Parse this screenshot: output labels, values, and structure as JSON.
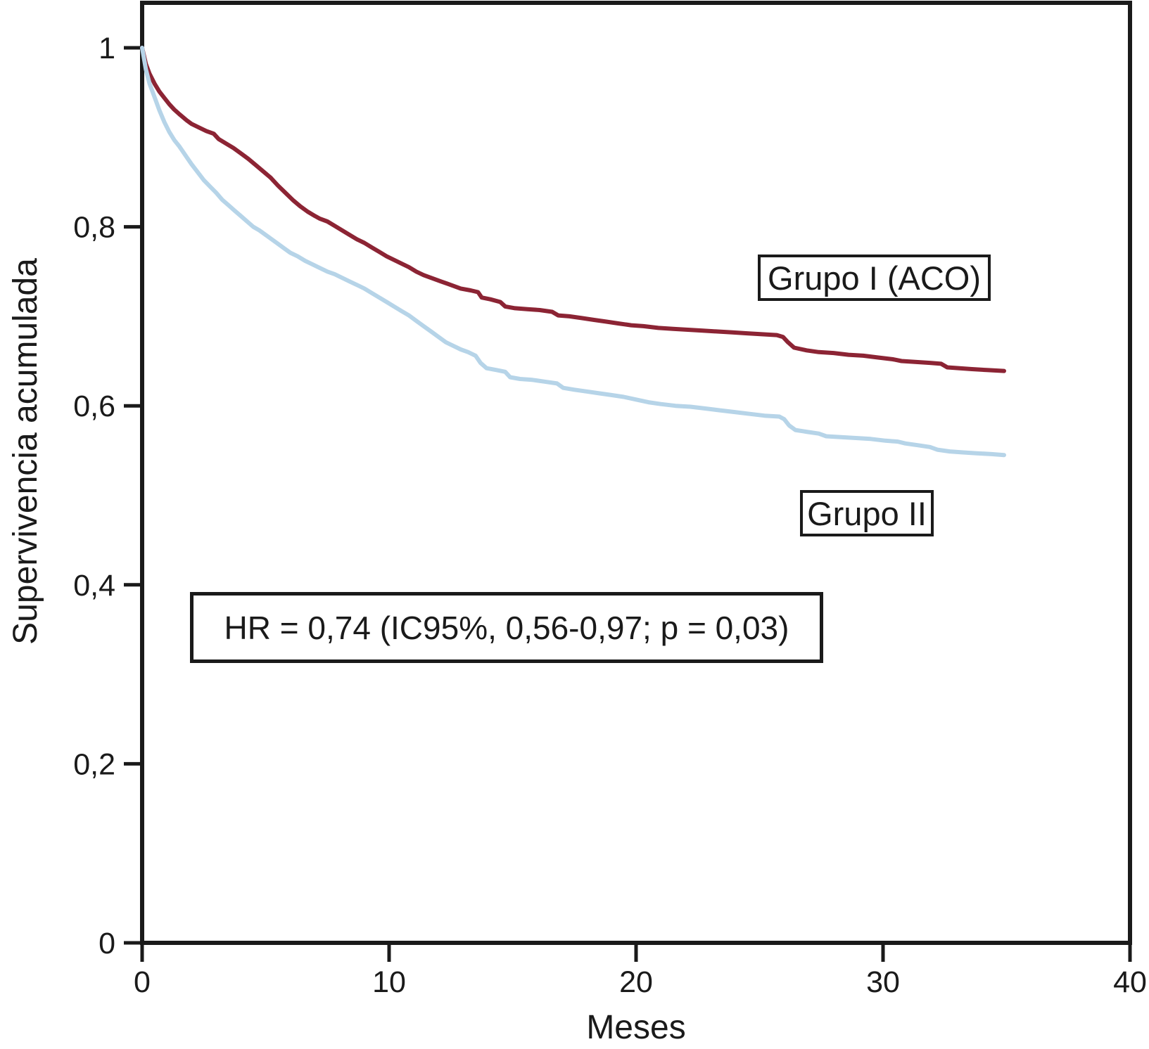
{
  "figure": {
    "background": "#ffffff"
  },
  "axes": {
    "x": {
      "label": "Meses",
      "range": [
        0,
        40
      ],
      "ticks": [
        {
          "value": 0,
          "label": "0"
        },
        {
          "value": 10,
          "label": "10"
        },
        {
          "value": 20,
          "label": "20"
        },
        {
          "value": 30,
          "label": "30"
        },
        {
          "value": 40,
          "label": "40"
        }
      ]
    },
    "y": {
      "label": "Supervivencia acumulada",
      "range": [
        0,
        1
      ],
      "ticks": [
        {
          "value": 1,
          "label": "1"
        },
        {
          "value": 0.8,
          "label": "0,8"
        },
        {
          "value": 0.6,
          "label": "0,6"
        },
        {
          "value": 0.4,
          "label": "0,4"
        },
        {
          "value": 0.2,
          "label": "0,2"
        },
        {
          "value": 0,
          "label": "0"
        }
      ]
    }
  },
  "annotations": {
    "group1_label": "Grupo I (ACO)",
    "group2_label": "Grupo II",
    "hr_text": "HR = 0,74 (IC95%, 0,56-0,97; p = 0,03)"
  },
  "colors": {
    "group1": "#8c2434",
    "group2": "#b6d4e8",
    "axis": "#1a1a1a",
    "text": "#1a1a1a"
  },
  "chart_data": {
    "type": "line",
    "subtype": "kaplan-meier-survival",
    "title": "",
    "xlabel": "Meses",
    "ylabel": "Supervivencia acumulada",
    "xlim": [
      0,
      40
    ],
    "ylim": [
      0,
      1
    ],
    "grid": false,
    "legend_position": "boxed-labels-inside-plot",
    "series": [
      {
        "name": "Grupo I (ACO)",
        "color": "#8c2434",
        "points": [
          [
            0,
            1.0
          ],
          [
            0.15,
            0.982
          ],
          [
            0.3,
            0.971
          ],
          [
            0.5,
            0.96
          ],
          [
            0.7,
            0.951
          ],
          [
            0.9,
            0.944
          ],
          [
            1.1,
            0.937
          ],
          [
            1.3,
            0.931
          ],
          [
            1.5,
            0.926
          ],
          [
            1.8,
            0.919
          ],
          [
            2.0,
            0.915
          ],
          [
            2.3,
            0.911
          ],
          [
            2.6,
            0.907
          ],
          [
            2.9,
            0.904
          ],
          [
            3.1,
            0.898
          ],
          [
            3.4,
            0.893
          ],
          [
            3.7,
            0.888
          ],
          [
            4.0,
            0.882
          ],
          [
            4.3,
            0.876
          ],
          [
            4.6,
            0.869
          ],
          [
            4.9,
            0.862
          ],
          [
            5.2,
            0.855
          ],
          [
            5.5,
            0.846
          ],
          [
            5.8,
            0.838
          ],
          [
            6.1,
            0.83
          ],
          [
            6.4,
            0.823
          ],
          [
            6.7,
            0.817
          ],
          [
            7.0,
            0.812
          ],
          [
            7.2,
            0.809
          ],
          [
            7.5,
            0.806
          ],
          [
            7.8,
            0.801
          ],
          [
            8.1,
            0.796
          ],
          [
            8.4,
            0.791
          ],
          [
            8.7,
            0.786
          ],
          [
            9.0,
            0.782
          ],
          [
            9.3,
            0.777
          ],
          [
            9.6,
            0.772
          ],
          [
            9.9,
            0.767
          ],
          [
            10.2,
            0.763
          ],
          [
            10.5,
            0.759
          ],
          [
            10.8,
            0.755
          ],
          [
            11.1,
            0.75
          ],
          [
            11.4,
            0.746
          ],
          [
            11.7,
            0.743
          ],
          [
            12.1,
            0.739
          ],
          [
            12.5,
            0.735
          ],
          [
            12.9,
            0.731
          ],
          [
            13.3,
            0.729
          ],
          [
            13.6,
            0.727
          ],
          [
            13.75,
            0.721
          ],
          [
            14.1,
            0.719
          ],
          [
            14.5,
            0.716
          ],
          [
            14.7,
            0.711
          ],
          [
            15.1,
            0.709
          ],
          [
            15.6,
            0.708
          ],
          [
            16.1,
            0.707
          ],
          [
            16.6,
            0.705
          ],
          [
            16.85,
            0.701
          ],
          [
            17.3,
            0.7
          ],
          [
            17.8,
            0.698
          ],
          [
            18.3,
            0.696
          ],
          [
            18.8,
            0.694
          ],
          [
            19.3,
            0.692
          ],
          [
            19.8,
            0.69
          ],
          [
            20.3,
            0.689
          ],
          [
            20.9,
            0.687
          ],
          [
            21.5,
            0.686
          ],
          [
            22.1,
            0.685
          ],
          [
            22.7,
            0.684
          ],
          [
            23.3,
            0.683
          ],
          [
            23.9,
            0.682
          ],
          [
            24.5,
            0.681
          ],
          [
            25.1,
            0.68
          ],
          [
            25.7,
            0.679
          ],
          [
            25.95,
            0.677
          ],
          [
            26.15,
            0.671
          ],
          [
            26.4,
            0.665
          ],
          [
            26.9,
            0.662
          ],
          [
            27.4,
            0.66
          ],
          [
            28.0,
            0.659
          ],
          [
            28.6,
            0.657
          ],
          [
            29.2,
            0.656
          ],
          [
            29.8,
            0.654
          ],
          [
            30.4,
            0.652
          ],
          [
            30.75,
            0.65
          ],
          [
            31.3,
            0.649
          ],
          [
            31.9,
            0.648
          ],
          [
            32.35,
            0.647
          ],
          [
            32.6,
            0.643
          ],
          [
            33.1,
            0.642
          ],
          [
            33.6,
            0.641
          ],
          [
            34.2,
            0.64
          ],
          [
            34.9,
            0.639
          ]
        ]
      },
      {
        "name": "Grupo II",
        "color": "#b6d4e8",
        "points": [
          [
            0,
            1.0
          ],
          [
            0.15,
            0.976
          ],
          [
            0.3,
            0.96
          ],
          [
            0.5,
            0.945
          ],
          [
            0.7,
            0.93
          ],
          [
            0.9,
            0.917
          ],
          [
            1.1,
            0.906
          ],
          [
            1.3,
            0.897
          ],
          [
            1.5,
            0.89
          ],
          [
            1.8,
            0.878
          ],
          [
            2.0,
            0.87
          ],
          [
            2.25,
            0.861
          ],
          [
            2.5,
            0.852
          ],
          [
            2.75,
            0.845
          ],
          [
            3.0,
            0.838
          ],
          [
            3.25,
            0.83
          ],
          [
            3.5,
            0.824
          ],
          [
            3.75,
            0.818
          ],
          [
            4.0,
            0.812
          ],
          [
            4.25,
            0.806
          ],
          [
            4.5,
            0.8
          ],
          [
            4.75,
            0.796
          ],
          [
            5.0,
            0.791
          ],
          [
            5.25,
            0.786
          ],
          [
            5.5,
            0.781
          ],
          [
            5.75,
            0.776
          ],
          [
            6.0,
            0.771
          ],
          [
            6.3,
            0.767
          ],
          [
            6.6,
            0.762
          ],
          [
            6.9,
            0.758
          ],
          [
            7.2,
            0.754
          ],
          [
            7.5,
            0.75
          ],
          [
            7.8,
            0.747
          ],
          [
            8.1,
            0.743
          ],
          [
            8.4,
            0.739
          ],
          [
            8.7,
            0.735
          ],
          [
            9.0,
            0.731
          ],
          [
            9.3,
            0.726
          ],
          [
            9.6,
            0.721
          ],
          [
            9.9,
            0.716
          ],
          [
            10.2,
            0.711
          ],
          [
            10.5,
            0.706
          ],
          [
            10.8,
            0.701
          ],
          [
            11.1,
            0.695
          ],
          [
            11.4,
            0.689
          ],
          [
            11.7,
            0.683
          ],
          [
            12.0,
            0.677
          ],
          [
            12.3,
            0.671
          ],
          [
            12.6,
            0.667
          ],
          [
            12.9,
            0.663
          ],
          [
            13.2,
            0.66
          ],
          [
            13.5,
            0.656
          ],
          [
            13.7,
            0.648
          ],
          [
            13.95,
            0.642
          ],
          [
            14.35,
            0.64
          ],
          [
            14.7,
            0.638
          ],
          [
            14.9,
            0.632
          ],
          [
            15.3,
            0.63
          ],
          [
            15.8,
            0.629
          ],
          [
            16.3,
            0.627
          ],
          [
            16.8,
            0.625
          ],
          [
            17.05,
            0.62
          ],
          [
            17.5,
            0.618
          ],
          [
            18.0,
            0.616
          ],
          [
            18.5,
            0.614
          ],
          [
            19.0,
            0.612
          ],
          [
            19.5,
            0.61
          ],
          [
            20.0,
            0.607
          ],
          [
            20.5,
            0.604
          ],
          [
            21.0,
            0.602
          ],
          [
            21.6,
            0.6
          ],
          [
            22.2,
            0.599
          ],
          [
            22.8,
            0.597
          ],
          [
            23.4,
            0.595
          ],
          [
            24.0,
            0.593
          ],
          [
            24.6,
            0.591
          ],
          [
            25.2,
            0.589
          ],
          [
            25.8,
            0.588
          ],
          [
            26.0,
            0.585
          ],
          [
            26.2,
            0.578
          ],
          [
            26.45,
            0.573
          ],
          [
            26.9,
            0.571
          ],
          [
            27.4,
            0.569
          ],
          [
            27.7,
            0.566
          ],
          [
            28.3,
            0.565
          ],
          [
            28.9,
            0.564
          ],
          [
            29.5,
            0.563
          ],
          [
            30.1,
            0.561
          ],
          [
            30.6,
            0.56
          ],
          [
            30.9,
            0.558
          ],
          [
            31.4,
            0.556
          ],
          [
            31.9,
            0.554
          ],
          [
            32.2,
            0.551
          ],
          [
            32.7,
            0.549
          ],
          [
            33.2,
            0.548
          ],
          [
            33.8,
            0.547
          ],
          [
            34.4,
            0.546
          ],
          [
            34.9,
            0.545
          ]
        ]
      }
    ]
  }
}
